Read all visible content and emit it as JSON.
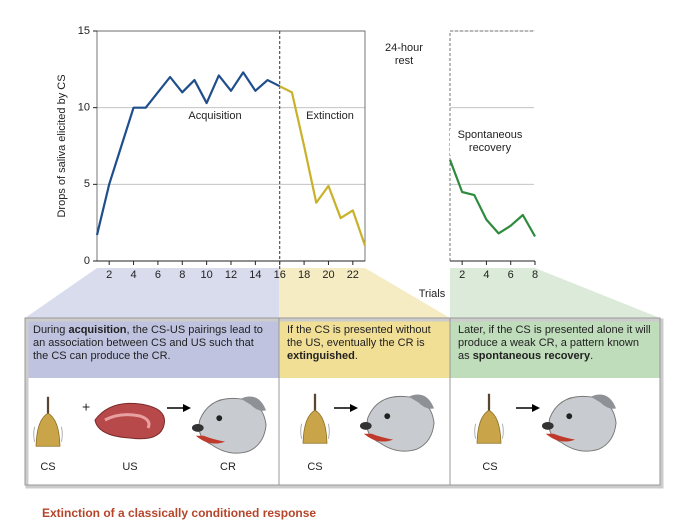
{
  "chart_data": [
    {
      "type": "line",
      "ylabel": "Drops of saliva elicited by CS",
      "xlabel": "Trials",
      "xlim": [
        1,
        23
      ],
      "xticks": [
        2,
        4,
        6,
        8,
        10,
        12,
        14,
        16,
        18,
        20,
        22
      ],
      "ylim": [
        0,
        15
      ],
      "yticks": [
        0,
        5,
        10,
        15
      ],
      "grid": true,
      "dividers": [
        16
      ],
      "annotations": [
        "24-hour rest"
      ],
      "series": [
        {
          "name": "Acquisition",
          "color": "#1f4e8c",
          "x": [
            1,
            2,
            3,
            4,
            5,
            6,
            7,
            8,
            9,
            10,
            11,
            12,
            13,
            14,
            15,
            16
          ],
          "values": [
            1.7,
            5.0,
            7.5,
            10.0,
            10.0,
            11.0,
            12.0,
            11.0,
            11.8,
            10.3,
            12.1,
            11.1,
            12.3,
            11.1,
            11.8,
            11.4
          ]
        },
        {
          "name": "Extinction",
          "color": "#c9b12a",
          "x": [
            16,
            17,
            18,
            19,
            20,
            21,
            22,
            23
          ],
          "values": [
            11.4,
            11.0,
            7.5,
            3.8,
            4.9,
            2.8,
            3.3,
            1.0
          ]
        }
      ]
    },
    {
      "type": "line",
      "xlim": [
        1,
        8
      ],
      "xticks": [
        2,
        4,
        6,
        8
      ],
      "ylim": [
        0,
        15
      ],
      "grid": true,
      "series": [
        {
          "name": "Spontaneous recovery",
          "color": "#2e8b3e",
          "x": [
            1,
            2,
            3,
            4,
            5,
            6,
            7,
            8
          ],
          "values": [
            6.6,
            4.5,
            4.3,
            2.7,
            1.8,
            2.3,
            3.0,
            1.6
          ]
        }
      ]
    }
  ],
  "panels": [
    {
      "segments": [
        "During ",
        "acquisition",
        ", the CS-US pairings lead to an association between CS and US such that the CS can produce the CR."
      ],
      "labels": [
        "CS",
        "US",
        "CR"
      ]
    },
    {
      "segments": [
        "If the CS is presented without the US, eventually the CR is ",
        "extinguished",
        "."
      ],
      "labels": [
        "CS"
      ]
    },
    {
      "segments": [
        "Later, if the CS is presented alone it will produce a weak CR, a pattern known as ",
        "spontaneous recovery",
        "."
      ],
      "labels": [
        "CS"
      ]
    }
  ],
  "caption": "Extinction of a classically conditioned response"
}
